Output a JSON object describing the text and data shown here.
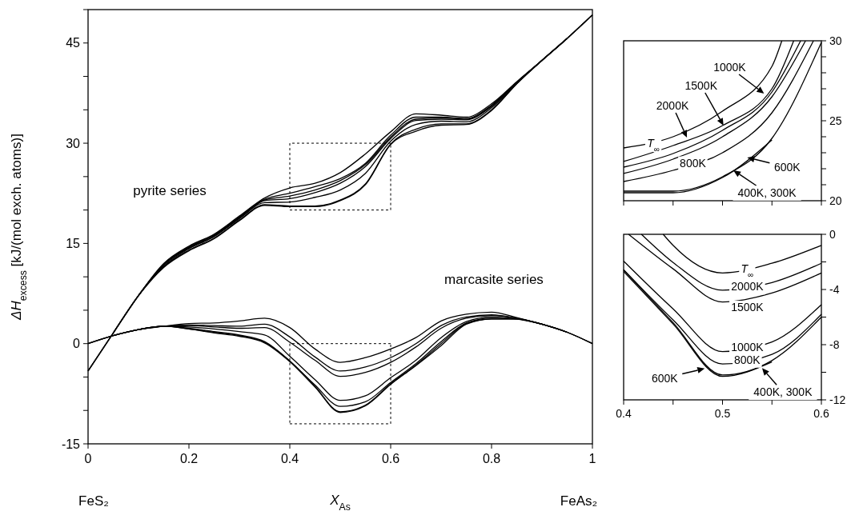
{
  "chart_data": [
    {
      "type": "line",
      "xlabel": "X$_{As}$",
      "ylabel": "ΔH$_{excess}$ [kJ/(mol exch. atoms)]",
      "annotations": [
        "pyrite series",
        "marcasite series",
        "FeS₂",
        "FeAs₂"
      ],
      "x": [
        0,
        0.05,
        0.1,
        0.15,
        0.2,
        0.25,
        0.3,
        0.35,
        0.4,
        0.45,
        0.5,
        0.55,
        0.6,
        0.65,
        0.7,
        0.75,
        0.8,
        0.85,
        0.9,
        0.95,
        1
      ],
      "xlim": [
        0,
        1
      ],
      "ylim": [
        -15,
        50
      ],
      "xticks": [
        0,
        0.2,
        0.4,
        0.6,
        0.8,
        1
      ],
      "yticks": [
        -15,
        {
          "value": -10,
          "label": null
        },
        {
          "value": -5,
          "label": null
        },
        0,
        {
          "value": 5,
          "label": null
        },
        {
          "value": 10,
          "label": null
        },
        15,
        {
          "value": 20,
          "label": null
        },
        {
          "value": 25,
          "label": null
        },
        30,
        {
          "value": 35,
          "label": null
        },
        {
          "value": 40,
          "label": null
        },
        45,
        {
          "value": 50,
          "label": null
        }
      ],
      "series": [
        {
          "color": "#000000",
          "values": [
            -4.1,
            1.6,
            7.2,
            12.0,
            14.6,
            16.4,
            19.1,
            21.8,
            23.3,
            24.0,
            25.6,
            28.4,
            31.7,
            34.4,
            34.2,
            33.9,
            35.9,
            39.2,
            42.4,
            45.7,
            49.2
          ]
        },
        {
          "color": "#000000",
          "values": [
            null,
            1.6,
            7.2,
            11.9,
            14.5,
            16.3,
            19.0,
            21.6,
            22.5,
            23.5,
            24.7,
            27.0,
            31.2,
            33.9,
            33.9,
            33.7,
            35.7,
            39.1,
            42.4,
            45.7,
            49.2
          ]
        },
        {
          "color": "#000000",
          "values": [
            null,
            null,
            7.2,
            11.8,
            14.4,
            16.2,
            18.9,
            21.5,
            22.1,
            23.0,
            24.4,
            26.8,
            30.9,
            33.6,
            33.8,
            33.6,
            35.6,
            39.1,
            42.4,
            45.7,
            49.2
          ]
        },
        {
          "color": "#000000",
          "values": [
            -4.1,
            1.6,
            7.2,
            11.8,
            14.3,
            16.1,
            18.8,
            21.4,
            21.7,
            22.6,
            24.0,
            26.5,
            30.7,
            33.4,
            33.6,
            33.5,
            35.5,
            39.1,
            42.4,
            45.7,
            null
          ]
        },
        {
          "color": "#000000",
          "values": [
            null,
            1.6,
            7.2,
            11.6,
            14.2,
            16.0,
            18.7,
            21.1,
            21.2,
            21.9,
            23.0,
            25.5,
            30.3,
            32.8,
            33.3,
            33.2,
            35.3,
            39.0,
            42.4,
            45.7,
            null
          ]
        },
        {
          "color": "#000000",
          "values": [
            null,
            null,
            7.2,
            11.5,
            14.0,
            15.8,
            18.5,
            20.8,
            20.6,
            20.6,
            21.5,
            23.9,
            29.9,
            32.1,
            32.9,
            32.9,
            35.0,
            38.9,
            42.4,
            45.7,
            null
          ]
        },
        {
          "color": "#000000",
          "values": [
            -4.1,
            1.6,
            7.2,
            11.4,
            13.9,
            15.7,
            18.4,
            20.7,
            20.5,
            20.5,
            21.4,
            23.8,
            29.8,
            31.8,
            32.7,
            32.8,
            34.9,
            38.9,
            42.4,
            null,
            null
          ]
        },
        {
          "color": "#000000",
          "values": [
            0,
            1.2,
            2.1,
            2.6,
            3.0,
            3.1,
            3.4,
            3.8,
            2.4,
            -0.8,
            -2.8,
            -2.1,
            -0.8,
            0.9,
            3.4,
            4.4,
            4.7,
            3.9,
            2.9,
            1.7,
            0
          ]
        },
        {
          "color": "#000000",
          "values": [
            null,
            1.2,
            2.1,
            2.6,
            2.8,
            2.7,
            2.6,
            2.9,
            1.0,
            -2.0,
            -4.1,
            -3.5,
            -2.1,
            0.0,
            2.7,
            4.0,
            4.3,
            3.8,
            2.9,
            1.7,
            0
          ]
        },
        {
          "color": "#000000",
          "values": [
            null,
            null,
            2.1,
            2.6,
            2.7,
            2.5,
            2.3,
            2.4,
            0.2,
            -2.5,
            -4.9,
            -4.3,
            -2.8,
            -0.5,
            2.3,
            3.8,
            4.2,
            3.8,
            2.9,
            1.7,
            0
          ]
        },
        {
          "color": "#000000",
          "values": [
            0,
            1.2,
            2.1,
            2.6,
            2.5,
            2.2,
            1.8,
            1.3,
            -1.9,
            -5.4,
            -8.5,
            -7.8,
            -5.1,
            -2.5,
            0.9,
            3.3,
            4.0,
            3.7,
            2.9,
            1.7,
            null
          ]
        },
        {
          "color": "#000000",
          "values": [
            null,
            1.2,
            2.1,
            2.6,
            2.3,
            1.8,
            1.3,
            0.3,
            -2.6,
            -6.2,
            -9.4,
            -8.7,
            -5.8,
            -3.0,
            0.3,
            3.1,
            3.8,
            3.7,
            2.9,
            1.7,
            null
          ]
        },
        {
          "color": "#000000",
          "values": [
            null,
            null,
            2.1,
            2.6,
            2.2,
            1.7,
            1.2,
            0.2,
            -2.6,
            -6.4,
            -10.2,
            -9.2,
            -6.0,
            -3.2,
            0.0,
            3.0,
            3.7,
            3.7,
            2.9,
            1.7,
            null
          ]
        },
        {
          "color": "#000000",
          "values": [
            0,
            1.2,
            2.1,
            2.6,
            2.2,
            1.6,
            1.1,
            0.1,
            -2.7,
            -6.5,
            -10.3,
            -9.3,
            -6.1,
            -3.3,
            -0.3,
            2.9,
            3.7,
            3.7,
            2.9,
            null,
            null
          ]
        }
      ]
    },
    {
      "type": "line",
      "tick_labels": "y",
      "xlim": [
        0.4,
        0.6
      ],
      "ylim": [
        20,
        30
      ],
      "xticks": [
        {
          "value": 0.4,
          "label": null
        },
        {
          "value": 0.45,
          "label": null
        },
        {
          "value": 0.5,
          "label": null
        },
        {
          "value": 0.55,
          "label": null
        },
        {
          "value": 0.6,
          "label": null
        }
      ],
      "yticks": [
        20,
        {
          "value": 21,
          "label": null
        },
        {
          "value": 22,
          "label": null
        },
        {
          "value": 23,
          "label": null
        },
        {
          "value": 24,
          "label": null
        },
        25,
        {
          "value": 26,
          "label": null
        },
        {
          "value": 27,
          "label": null
        },
        {
          "value": 28,
          "label": null
        },
        {
          "value": 29,
          "label": null
        },
        30
      ],
      "annotations": [
        {
          "text": "T$_{∞}$",
          "x": 0.43,
          "y": 23.6
        },
        {
          "text": "2000K",
          "x": 0.464,
          "y": 23.95
        },
        {
          "text": "1500K",
          "x": 0.501,
          "y": 24.7
        },
        {
          "text": "1000K",
          "x": 0.542,
          "y": 26.7
        },
        {
          "text": "800K",
          "x": 0.47,
          "y": 22.35
        },
        {
          "text": "600K",
          "x": 0.525,
          "y": 22.7
        },
        {
          "text": "400K, 300K",
          "x": 0.511,
          "y": 21.9
        }
      ],
      "series": [
        {
          "color": "#000000",
          "x": [
            0.4,
            0.45,
            0.5,
            0.55,
            0.56
          ],
          "values": [
            23.3,
            24.0,
            25.6,
            28.4,
            30
          ]
        },
        {
          "color": "#000000",
          "x": [
            0.4,
            0.45,
            0.5,
            0.55,
            0.572
          ],
          "values": [
            22.45,
            23.45,
            24.7,
            27.0,
            30
          ]
        },
        {
          "color": "#000000",
          "x": [
            0.4,
            0.45,
            0.5,
            0.55,
            0.579
          ],
          "values": [
            22.1,
            22.95,
            24.4,
            26.8,
            30
          ]
        },
        {
          "color": "#000000",
          "x": [
            0.4,
            0.45,
            0.5,
            0.55,
            0.584
          ],
          "values": [
            21.7,
            22.6,
            24.0,
            26.5,
            30
          ]
        },
        {
          "color": "#000000",
          "x": [
            0.4,
            0.45,
            0.5,
            0.55,
            0.592
          ],
          "values": [
            21.2,
            21.9,
            23.0,
            25.5,
            30
          ]
        },
        {
          "color": "#000000",
          "x": [
            0.4,
            0.45,
            0.5,
            0.55,
            0.6
          ],
          "values": [
            20.6,
            20.6,
            21.5,
            23.9,
            29.9
          ]
        },
        {
          "color": "#000000",
          "x": [
            0.4,
            0.45,
            0.5,
            0.55
          ],
          "values": [
            20.5,
            20.5,
            21.45,
            23.8
          ]
        }
      ]
    },
    {
      "type": "line",
      "xlim": [
        0.4,
        0.6
      ],
      "ylim": [
        -12,
        0
      ],
      "xticks": [
        0.4,
        {
          "value": 0.45,
          "label": null
        },
        0.5,
        {
          "value": 0.55,
          "label": null
        },
        0.6
      ],
      "yticks": [
        -12,
        {
          "value": -10,
          "label": null
        },
        -8,
        {
          "value": -6,
          "label": null
        },
        -4,
        {
          "value": -2,
          "label": null
        },
        0
      ],
      "annotations": [
        {
          "text": "T$_{∞}$",
          "x": 0.525,
          "y": -2.5
        },
        {
          "text": "2000K",
          "x": 0.525,
          "y": -3.8
        },
        {
          "text": "1500K",
          "x": 0.525,
          "y": -4.6
        },
        {
          "text": "1000K",
          "x": 0.525,
          "y": -8.2
        },
        {
          "text": "800K",
          "x": 0.525,
          "y": -9.1
        },
        {
          "text": "600K",
          "x": 0.482,
          "y": -9.73
        },
        {
          "text": "400K, 300K",
          "x": 0.54,
          "y": -9.7
        }
      ],
      "series": [
        {
          "color": "#000000",
          "x": [
            0.44,
            0.45,
            0.5,
            0.55,
            0.6
          ],
          "values": [
            0,
            -0.8,
            -2.8,
            -2.1,
            -0.8
          ]
        },
        {
          "color": "#000000",
          "x": [
            0.418,
            0.45,
            0.5,
            0.55,
            0.6
          ],
          "values": [
            0,
            -2.04,
            -4.05,
            -3.5,
            -2.1
          ]
        },
        {
          "color": "#000000",
          "x": [
            0.405,
            0.45,
            0.5,
            0.55,
            0.6
          ],
          "values": [
            0,
            -2.5,
            -4.9,
            -4.25,
            -2.8
          ]
        },
        {
          "color": "#000000",
          "x": [
            0.4,
            0.45,
            0.5,
            0.55,
            0.6
          ],
          "values": [
            -1.94,
            -5.4,
            -8.5,
            -7.8,
            -5.1
          ]
        },
        {
          "color": "#000000",
          "x": [
            0.4,
            0.45,
            0.5,
            0.55,
            0.6
          ],
          "values": [
            -2.56,
            -6.2,
            -9.4,
            -8.7,
            -5.8
          ]
        },
        {
          "color": "#000000",
          "x": [
            0.4,
            0.45,
            0.5,
            0.55,
            0.6
          ],
          "values": [
            -2.6,
            -6.4,
            -10.2,
            -9.15,
            -6.0
          ]
        },
        {
          "color": "#000000",
          "x": [
            0.4,
            0.45,
            0.5,
            0.55
          ],
          "values": [
            -2.7,
            -6.5,
            -10.3,
            -9.25
          ]
        }
      ]
    }
  ]
}
